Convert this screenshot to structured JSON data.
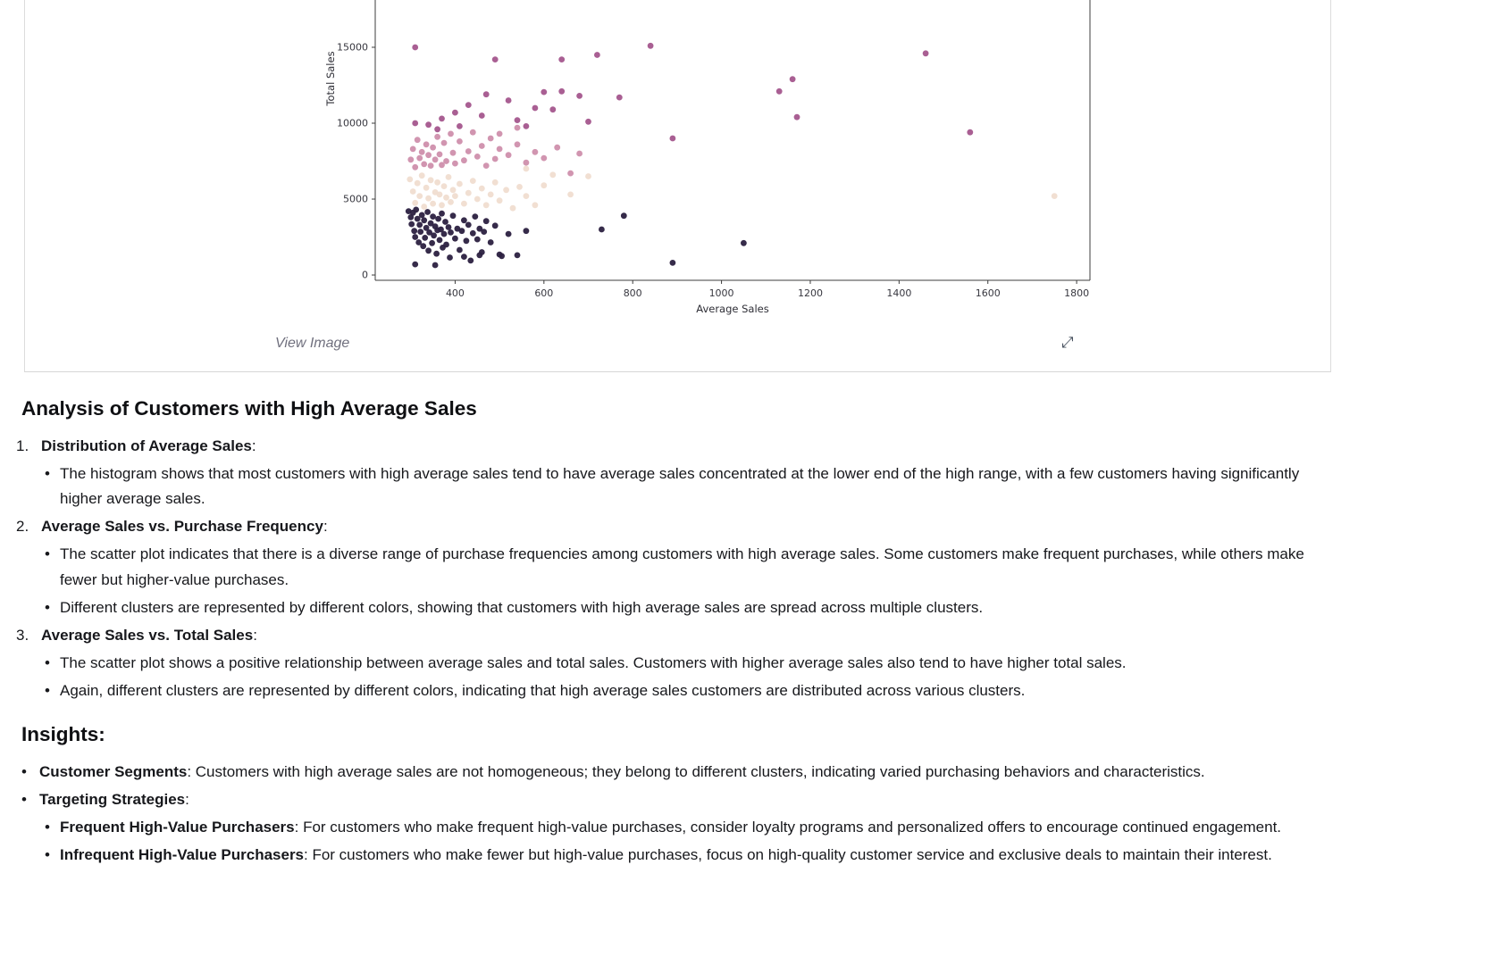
{
  "panel": {
    "view_image_label": "View Image",
    "expand_icon": "expand-diagonal-arrows"
  },
  "chart_data": {
    "type": "scatter",
    "title": "",
    "xlabel": "Average Sales",
    "ylabel": "Total Sales",
    "xlim": [
      220,
      1830
    ],
    "ylim_visible": [
      -350,
      18350
    ],
    "xticks": [
      400,
      600,
      800,
      1000,
      1200,
      1400,
      1600,
      1800
    ],
    "yticks": [
      0,
      5000,
      10000,
      15000
    ],
    "grid": false,
    "legend": "none",
    "clusters": [
      {
        "name": "cluster-dark",
        "color": "#2b2040"
      },
      {
        "name": "cluster-mauve",
        "color": "#a4568d"
      },
      {
        "name": "cluster-pink",
        "color": "#cf8fac"
      },
      {
        "name": "cluster-cream",
        "color": "#f0ddd0"
      }
    ],
    "points": [
      [
        298,
        6300,
        3
      ],
      [
        305,
        5500,
        3
      ],
      [
        310,
        4750,
        3
      ],
      [
        315,
        6050,
        3
      ],
      [
        320,
        5200,
        3
      ],
      [
        325,
        6550,
        3
      ],
      [
        330,
        4500,
        3
      ],
      [
        335,
        5750,
        3
      ],
      [
        340,
        5050,
        3
      ],
      [
        345,
        6250,
        3
      ],
      [
        350,
        4700,
        3
      ],
      [
        355,
        5450,
        3
      ],
      [
        360,
        6100,
        3
      ],
      [
        365,
        5300,
        3
      ],
      [
        370,
        4600,
        3
      ],
      [
        375,
        5850,
        3
      ],
      [
        380,
        5100,
        3
      ],
      [
        385,
        6450,
        3
      ],
      [
        390,
        4800,
        3
      ],
      [
        395,
        5600,
        3
      ],
      [
        400,
        5200,
        3
      ],
      [
        410,
        6000,
        3
      ],
      [
        420,
        4700,
        3
      ],
      [
        430,
        5400,
        3
      ],
      [
        440,
        6200,
        3
      ],
      [
        450,
        5000,
        3
      ],
      [
        460,
        5700,
        3
      ],
      [
        470,
        4600,
        3
      ],
      [
        480,
        5300,
        3
      ],
      [
        490,
        6100,
        3
      ],
      [
        500,
        4900,
        3
      ],
      [
        515,
        5600,
        3
      ],
      [
        530,
        4400,
        3
      ],
      [
        545,
        5800,
        3
      ],
      [
        560,
        5200,
        3
      ],
      [
        580,
        4600,
        3
      ],
      [
        600,
        5900,
        3
      ],
      [
        620,
        6600,
        3
      ],
      [
        560,
        7000,
        3
      ],
      [
        660,
        5300,
        3
      ],
      [
        700,
        6500,
        3
      ],
      [
        1750,
        5200,
        3
      ],
      [
        300,
        7600,
        2
      ],
      [
        305,
        8300,
        2
      ],
      [
        310,
        7100,
        2
      ],
      [
        315,
        8900,
        2
      ],
      [
        320,
        7700,
        2
      ],
      [
        325,
        8100,
        2
      ],
      [
        330,
        7300,
        2
      ],
      [
        335,
        8600,
        2
      ],
      [
        340,
        7900,
        2
      ],
      [
        345,
        7200,
        2
      ],
      [
        350,
        8400,
        2
      ],
      [
        355,
        7600,
        2
      ],
      [
        360,
        9100,
        2
      ],
      [
        365,
        7950,
        2
      ],
      [
        370,
        7250,
        2
      ],
      [
        375,
        8700,
        2
      ],
      [
        380,
        7500,
        2
      ],
      [
        390,
        9300,
        2
      ],
      [
        395,
        8050,
        2
      ],
      [
        400,
        7350,
        2
      ],
      [
        410,
        8800,
        2
      ],
      [
        420,
        7550,
        2
      ],
      [
        430,
        8150,
        2
      ],
      [
        440,
        9400,
        2
      ],
      [
        450,
        7800,
        2
      ],
      [
        460,
        8500,
        2
      ],
      [
        470,
        7200,
        2
      ],
      [
        480,
        9000,
        2
      ],
      [
        490,
        7650,
        2
      ],
      [
        500,
        8300,
        2
      ],
      [
        520,
        7900,
        2
      ],
      [
        540,
        8600,
        2
      ],
      [
        560,
        7400,
        2
      ],
      [
        580,
        8100,
        2
      ],
      [
        600,
        7700,
        2
      ],
      [
        630,
        8400,
        2
      ],
      [
        660,
        6700,
        2
      ],
      [
        680,
        8000,
        2
      ],
      [
        540,
        9700,
        2
      ],
      [
        500,
        9300,
        2
      ],
      [
        310,
        15000,
        1
      ],
      [
        490,
        14200,
        1
      ],
      [
        640,
        14200,
        1
      ],
      [
        720,
        14500,
        1
      ],
      [
        840,
        15100,
        1
      ],
      [
        1460,
        14600,
        1
      ],
      [
        470,
        11900,
        1
      ],
      [
        600,
        12050,
        1
      ],
      [
        640,
        12100,
        1
      ],
      [
        680,
        11800,
        1
      ],
      [
        770,
        11700,
        1
      ],
      [
        1130,
        12100,
        1
      ],
      [
        1160,
        12900,
        1
      ],
      [
        1170,
        10400,
        1
      ],
      [
        1560,
        9400,
        1
      ],
      [
        890,
        9000,
        1
      ],
      [
        430,
        11200,
        1
      ],
      [
        400,
        10700,
        1
      ],
      [
        370,
        10300,
        1
      ],
      [
        340,
        9900,
        1
      ],
      [
        460,
        10500,
        1
      ],
      [
        540,
        10200,
        1
      ],
      [
        580,
        11000,
        1
      ],
      [
        310,
        10000,
        1
      ],
      [
        620,
        10900,
        1
      ],
      [
        700,
        10100,
        1
      ],
      [
        520,
        11500,
        1
      ],
      [
        360,
        9600,
        1
      ],
      [
        410,
        9800,
        1
      ],
      [
        560,
        9800,
        1
      ],
      [
        295,
        4200,
        0
      ],
      [
        300,
        3800,
        0
      ],
      [
        302,
        3350,
        0
      ],
      [
        305,
        4100,
        0
      ],
      [
        308,
        2900,
        0
      ],
      [
        310,
        2500,
        0
      ],
      [
        312,
        4300,
        0
      ],
      [
        315,
        3700,
        0
      ],
      [
        318,
        2150,
        0
      ],
      [
        320,
        3300,
        0
      ],
      [
        322,
        2850,
        0
      ],
      [
        325,
        3950,
        0
      ],
      [
        328,
        1900,
        0
      ],
      [
        330,
        3600,
        0
      ],
      [
        332,
        2450,
        0
      ],
      [
        335,
        3100,
        0
      ],
      [
        338,
        4150,
        0
      ],
      [
        340,
        1600,
        0
      ],
      [
        342,
        2800,
        0
      ],
      [
        345,
        3400,
        0
      ],
      [
        348,
        2100,
        0
      ],
      [
        350,
        3850,
        0
      ],
      [
        352,
        2600,
        0
      ],
      [
        355,
        3200,
        0
      ],
      [
        358,
        1400,
        0
      ],
      [
        360,
        2950,
        0
      ],
      [
        362,
        3700,
        0
      ],
      [
        365,
        2300,
        0
      ],
      [
        368,
        3000,
        0
      ],
      [
        370,
        4050,
        0
      ],
      [
        372,
        1800,
        0
      ],
      [
        375,
        2700,
        0
      ],
      [
        378,
        3500,
        0
      ],
      [
        380,
        2000,
        0
      ],
      [
        385,
        3150,
        0
      ],
      [
        388,
        1150,
        0
      ],
      [
        390,
        2800,
        0
      ],
      [
        395,
        3900,
        0
      ],
      [
        400,
        2400,
        0
      ],
      [
        405,
        3050,
        0
      ],
      [
        410,
        1650,
        0
      ],
      [
        415,
        2900,
        0
      ],
      [
        420,
        3600,
        0
      ],
      [
        425,
        2250,
        0
      ],
      [
        430,
        3300,
        0
      ],
      [
        435,
        950,
        0
      ],
      [
        440,
        2750,
        0
      ],
      [
        445,
        3850,
        0
      ],
      [
        450,
        2350,
        0
      ],
      [
        455,
        3050,
        0
      ],
      [
        460,
        1500,
        0
      ],
      [
        465,
        2850,
        0
      ],
      [
        470,
        3550,
        0
      ],
      [
        480,
        2150,
        0
      ],
      [
        490,
        3250,
        0
      ],
      [
        500,
        1350,
        0
      ],
      [
        310,
        700,
        0
      ],
      [
        355,
        650,
        0
      ],
      [
        420,
        1200,
        0
      ],
      [
        455,
        1300,
        0
      ],
      [
        505,
        1250,
        0
      ],
      [
        520,
        2700,
        0
      ],
      [
        540,
        1300,
        0
      ],
      [
        560,
        2900,
        0
      ],
      [
        730,
        3000,
        0
      ],
      [
        780,
        3900,
        0
      ],
      [
        890,
        800,
        0
      ],
      [
        1050,
        2100,
        0
      ]
    ]
  },
  "analysis": {
    "title": "Analysis of Customers with High Average Sales",
    "numbered": [
      {
        "label": "Distribution of Average Sales",
        "bullets": [
          "The histogram shows that most customers with high average sales tend to have average sales concentrated at the lower end of the high range, with a few customers having significantly higher average sales."
        ]
      },
      {
        "label": "Average Sales vs. Purchase Frequency",
        "bullets": [
          "The scatter plot indicates that there is a diverse range of purchase frequencies among customers with high average sales. Some customers make frequent purchases, while others make fewer but higher-value purchases.",
          "Different clusters are represented by different colors, showing that customers with high average sales are spread across multiple clusters."
        ]
      },
      {
        "label": "Average Sales vs. Total Sales",
        "bullets": [
          "The scatter plot shows a positive relationship between average sales and total sales. Customers with higher average sales also tend to have higher total sales.",
          "Again, different clusters are represented by different colors, indicating that high average sales customers are distributed across various clusters."
        ]
      }
    ],
    "insights_title": "Insights:",
    "insights": [
      {
        "label": "Customer Segments",
        "text": "Customers with high average sales are not homogeneous; they belong to different clusters, indicating varied purchasing behaviors and characteristics.",
        "sub": []
      },
      {
        "label": "Targeting Strategies",
        "text": "",
        "sub": [
          {
            "label": "Frequent High-Value Purchasers",
            "text": "For customers who make frequent high-value purchases, consider loyalty programs and personalized offers to encourage continued engagement."
          },
          {
            "label": "Infrequent High-Value Purchasers",
            "text": "For customers who make fewer but high-value purchases, focus on high-quality customer service and exclusive deals to maintain their interest."
          }
        ]
      }
    ]
  }
}
